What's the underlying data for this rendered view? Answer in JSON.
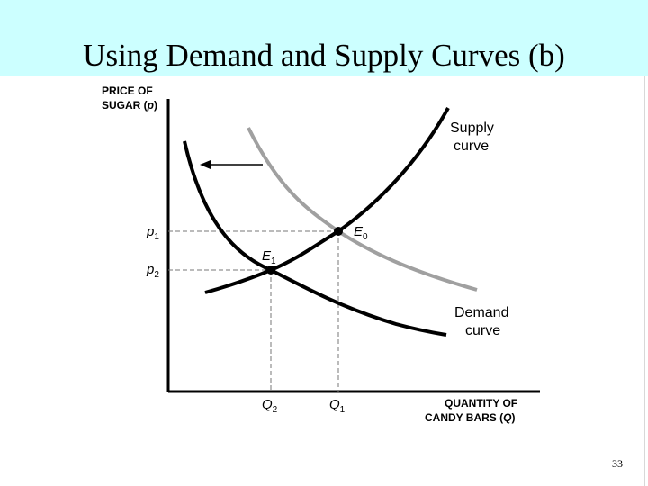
{
  "slide": {
    "title": "Using Demand and Supply Curves (b)",
    "page_number": "33"
  },
  "diagram": {
    "y_axis_label_line1": "PRICE OF",
    "y_axis_label_line2_text": "SUGAR (",
    "y_axis_label_line2_var": "p",
    "y_axis_label_line2_close": ")",
    "x_axis_label_line1": "QUANTITY OF",
    "x_axis_label_line2_text": "CANDY BARS (",
    "x_axis_label_line2_var": "Q",
    "x_axis_label_line2_close": ")",
    "supply_label_line1": "Supply",
    "supply_label_line2": "curve",
    "demand_label_line1": "Demand",
    "demand_label_line2": "curve",
    "p1_main": "p",
    "p1_sub": "1",
    "p2_main": "p",
    "p2_sub": "2",
    "q1_main": "Q",
    "q1_sub": "1",
    "q2_main": "Q",
    "q2_sub": "2",
    "e0_main": "E",
    "e0_sub": "0",
    "e1_main": "E",
    "e1_sub": "1",
    "colors": {
      "title_band": "#ccffff",
      "supply_curve": "#000000",
      "original_demand_curve": "#a0a0a0",
      "new_demand_curve": "#000000",
      "guide_lines": "#777777"
    }
  }
}
